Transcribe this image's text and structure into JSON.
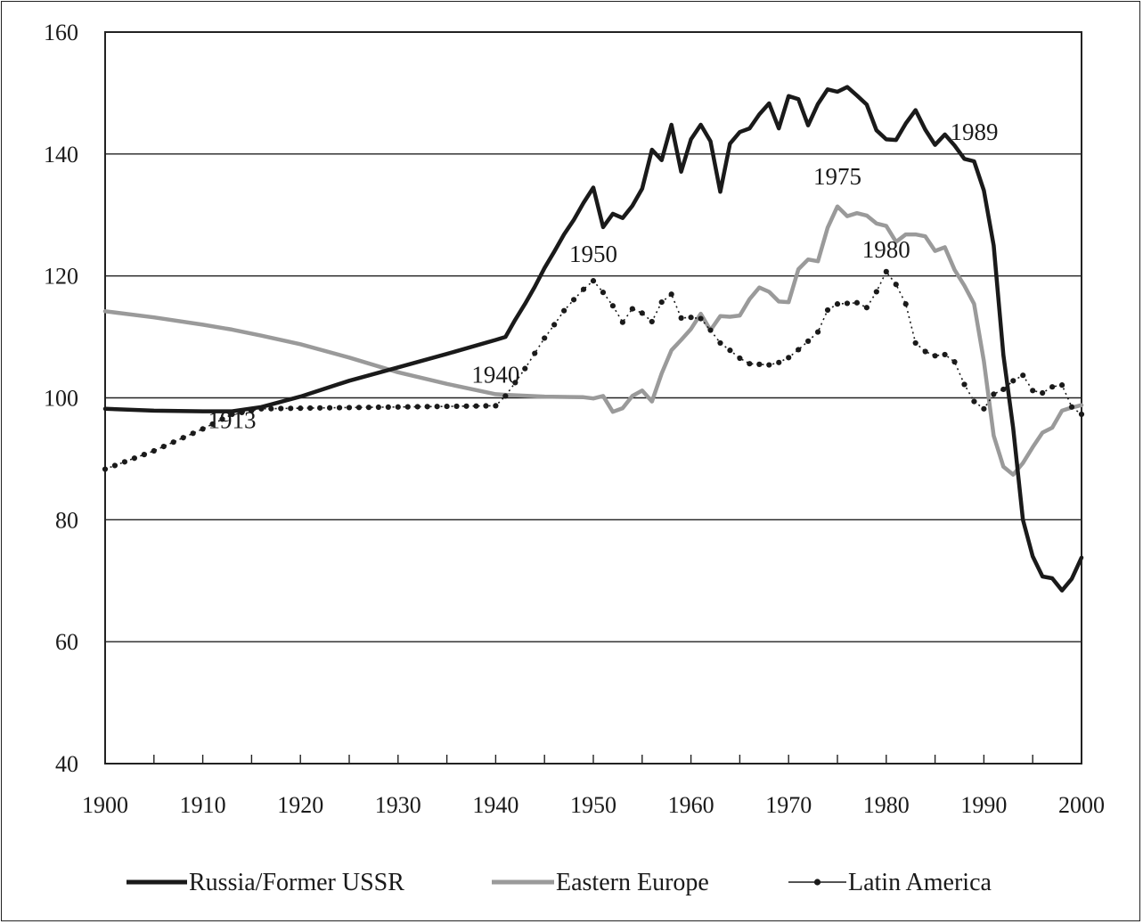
{
  "chart_data": {
    "type": "line",
    "title": "",
    "xlabel": "",
    "ylabel": "",
    "xlim": [
      1900,
      2000
    ],
    "ylim": [
      40,
      160
    ],
    "x_ticks": [
      1900,
      1910,
      1920,
      1930,
      1940,
      1950,
      1960,
      1970,
      1980,
      1990,
      2000
    ],
    "y_ticks": [
      40,
      60,
      80,
      100,
      120,
      140,
      160
    ],
    "x_tick_labels": [
      "1900",
      "1910",
      "1920",
      "1930",
      "1940",
      "1950",
      "1960",
      "1970",
      "1980",
      "1990",
      "2000"
    ],
    "y_tick_labels": [
      "40",
      "60",
      "80",
      "100",
      "120",
      "140",
      "160"
    ],
    "grid": "horizontal",
    "legend_position": "bottom",
    "colors": {
      "russia": "#1a1a1a",
      "eastern_europe": "#9a9a9a",
      "latin_america": "#1a1a1a"
    },
    "series": [
      {
        "name": "Russia/Former USSR",
        "style": "solid-thick-black",
        "points": [
          [
            1900,
            98.2
          ],
          [
            1905,
            97.9
          ],
          [
            1910,
            97.8
          ],
          [
            1913,
            97.8
          ],
          [
            1916,
            98.5
          ],
          [
            1920,
            100.2
          ],
          [
            1925,
            102.8
          ],
          [
            1930,
            105
          ],
          [
            1935,
            107.2
          ],
          [
            1940,
            109.5
          ],
          [
            1941,
            110
          ],
          [
            1942,
            112.8
          ],
          [
            1943,
            115.4
          ],
          [
            1944,
            118.2
          ],
          [
            1945,
            121.3
          ],
          [
            1946,
            124
          ],
          [
            1947,
            126.8
          ],
          [
            1948,
            129.2
          ],
          [
            1949,
            132
          ],
          [
            1950,
            134.5
          ],
          [
            1951,
            128
          ],
          [
            1952,
            130.2
          ],
          [
            1953,
            129.5
          ],
          [
            1954,
            131.5
          ],
          [
            1955,
            134.3
          ],
          [
            1956,
            140.7
          ],
          [
            1957,
            139
          ],
          [
            1958,
            144.8
          ],
          [
            1959,
            137.1
          ],
          [
            1960,
            142.4
          ],
          [
            1961,
            144.8
          ],
          [
            1962,
            142.1
          ],
          [
            1963,
            133.8
          ],
          [
            1964,
            141.7
          ],
          [
            1965,
            143.6
          ],
          [
            1966,
            144.2
          ],
          [
            1967,
            146.5
          ],
          [
            1968,
            148.3
          ],
          [
            1969,
            144.2
          ],
          [
            1970,
            149.5
          ],
          [
            1971,
            149
          ],
          [
            1972,
            144.7
          ],
          [
            1973,
            148.2
          ],
          [
            1974,
            150.6
          ],
          [
            1975,
            150.2
          ],
          [
            1976,
            151
          ],
          [
            1977,
            149.6
          ],
          [
            1978,
            148.1
          ],
          [
            1979,
            143.9
          ],
          [
            1980,
            142.4
          ],
          [
            1981,
            142.3
          ],
          [
            1982,
            145
          ],
          [
            1983,
            147.2
          ],
          [
            1984,
            144
          ],
          [
            1985,
            141.5
          ],
          [
            1986,
            143.2
          ],
          [
            1987,
            141.4
          ],
          [
            1988,
            139.2
          ],
          [
            1989,
            138.8
          ],
          [
            1990,
            134
          ],
          [
            1991,
            125
          ],
          [
            1992,
            107
          ],
          [
            1993,
            95
          ],
          [
            1994,
            80
          ],
          [
            1995,
            74
          ],
          [
            1996,
            70.7
          ],
          [
            1997,
            70.4
          ],
          [
            1998,
            68.4
          ],
          [
            1999,
            70.3
          ],
          [
            2000,
            73.8
          ]
        ]
      },
      {
        "name": "Eastern Europe",
        "style": "solid-thick-gray",
        "points": [
          [
            1900,
            114.2
          ],
          [
            1905,
            113.2
          ],
          [
            1910,
            112
          ],
          [
            1913,
            111.2
          ],
          [
            1916,
            110.2
          ],
          [
            1920,
            108.8
          ],
          [
            1925,
            106.6
          ],
          [
            1930,
            104.2
          ],
          [
            1935,
            102.3
          ],
          [
            1940,
            100.6
          ],
          [
            1941,
            100.5
          ],
          [
            1945,
            100.2
          ],
          [
            1949,
            100.1
          ],
          [
            1950,
            99.9
          ],
          [
            1951,
            100.3
          ],
          [
            1952,
            97.7
          ],
          [
            1953,
            98.3
          ],
          [
            1954,
            100.3
          ],
          [
            1955,
            101.2
          ],
          [
            1956,
            99.4
          ],
          [
            1957,
            104
          ],
          [
            1958,
            107.8
          ],
          [
            1959,
            109.5
          ],
          [
            1960,
            111.3
          ],
          [
            1961,
            113.8
          ],
          [
            1962,
            111.1
          ],
          [
            1963,
            113.4
          ],
          [
            1964,
            113.3
          ],
          [
            1965,
            113.5
          ],
          [
            1966,
            116.2
          ],
          [
            1967,
            118.1
          ],
          [
            1968,
            117.4
          ],
          [
            1969,
            115.8
          ],
          [
            1970,
            115.7
          ],
          [
            1971,
            121.1
          ],
          [
            1972,
            122.7
          ],
          [
            1973,
            122.4
          ],
          [
            1974,
            127.9
          ],
          [
            1975,
            131.4
          ],
          [
            1976,
            129.8
          ],
          [
            1977,
            130.3
          ],
          [
            1978,
            129.9
          ],
          [
            1979,
            128.6
          ],
          [
            1980,
            128.2
          ],
          [
            1981,
            125.6
          ],
          [
            1982,
            126.8
          ],
          [
            1983,
            126.8
          ],
          [
            1984,
            126.5
          ],
          [
            1985,
            124.1
          ],
          [
            1986,
            124.7
          ],
          [
            1987,
            121
          ],
          [
            1988,
            118.4
          ],
          [
            1989,
            115.4
          ],
          [
            1990,
            106
          ],
          [
            1991,
            93.8
          ],
          [
            1992,
            88.7
          ],
          [
            1993,
            87.4
          ],
          [
            1994,
            89.3
          ],
          [
            1995,
            91.9
          ],
          [
            1996,
            94.3
          ],
          [
            1997,
            95.1
          ],
          [
            1998,
            97.9
          ],
          [
            1999,
            98.4
          ],
          [
            2000,
            98.8
          ]
        ]
      },
      {
        "name": "Latin America",
        "style": "dotted-markers-black",
        "points": [
          [
            1900,
            88.3
          ],
          [
            1905,
            91.3
          ],
          [
            1910,
            94.9
          ],
          [
            1913,
            97.3
          ],
          [
            1916,
            98.2
          ],
          [
            1920,
            98.3
          ],
          [
            1925,
            98.4
          ],
          [
            1930,
            98.5
          ],
          [
            1935,
            98.6
          ],
          [
            1940,
            98.7
          ],
          [
            1941,
            100.3
          ],
          [
            1942,
            102.5
          ],
          [
            1943,
            104.8
          ],
          [
            1944,
            107.3
          ],
          [
            1945,
            109.8
          ],
          [
            1946,
            112
          ],
          [
            1947,
            114.3
          ],
          [
            1948,
            116.1
          ],
          [
            1949,
            117.8
          ],
          [
            1950,
            119.2
          ],
          [
            1951,
            117.3
          ],
          [
            1952,
            115.1
          ],
          [
            1953,
            112.4
          ],
          [
            1954,
            114.6
          ],
          [
            1955,
            113.9
          ],
          [
            1956,
            112.5
          ],
          [
            1957,
            115.7
          ],
          [
            1958,
            117
          ],
          [
            1959,
            113.1
          ],
          [
            1960,
            113.2
          ],
          [
            1961,
            113
          ],
          [
            1962,
            111.1
          ],
          [
            1963,
            109
          ],
          [
            1964,
            107.8
          ],
          [
            1965,
            106.5
          ],
          [
            1966,
            105.6
          ],
          [
            1967,
            105.5
          ],
          [
            1968,
            105.4
          ],
          [
            1969,
            105.8
          ],
          [
            1970,
            106.6
          ],
          [
            1971,
            107.9
          ],
          [
            1972,
            109.3
          ],
          [
            1973,
            110.8
          ],
          [
            1974,
            114.4
          ],
          [
            1975,
            115.4
          ],
          [
            1976,
            115.5
          ],
          [
            1977,
            115.6
          ],
          [
            1978,
            114.8
          ],
          [
            1979,
            117.4
          ],
          [
            1980,
            120.7
          ],
          [
            1981,
            118.6
          ],
          [
            1982,
            115.4
          ],
          [
            1983,
            109
          ],
          [
            1984,
            107.6
          ],
          [
            1985,
            106.9
          ],
          [
            1986,
            107.1
          ],
          [
            1987,
            105.9
          ],
          [
            1988,
            102.2
          ],
          [
            1989,
            99.4
          ],
          [
            1990,
            98.2
          ],
          [
            1991,
            100.6
          ],
          [
            1992,
            101.4
          ],
          [
            1993,
            102.8
          ],
          [
            1994,
            103.7
          ],
          [
            1995,
            101.2
          ],
          [
            1996,
            100.8
          ],
          [
            1997,
            101.8
          ],
          [
            1998,
            102.1
          ],
          [
            1999,
            98.5
          ],
          [
            2000,
            97.3
          ]
        ]
      }
    ],
    "annotations": [
      {
        "text": "1913",
        "x": 1913,
        "y": 95
      },
      {
        "text": "1940",
        "x": 1940,
        "y": 102.5
      },
      {
        "text": "1950",
        "x": 1950,
        "y": 122.3
      },
      {
        "text": "1975",
        "x": 1975,
        "y": 135
      },
      {
        "text": "1980",
        "x": 1980,
        "y": 123
      },
      {
        "text": "1989",
        "x": 1989,
        "y": 142.3
      }
    ]
  }
}
